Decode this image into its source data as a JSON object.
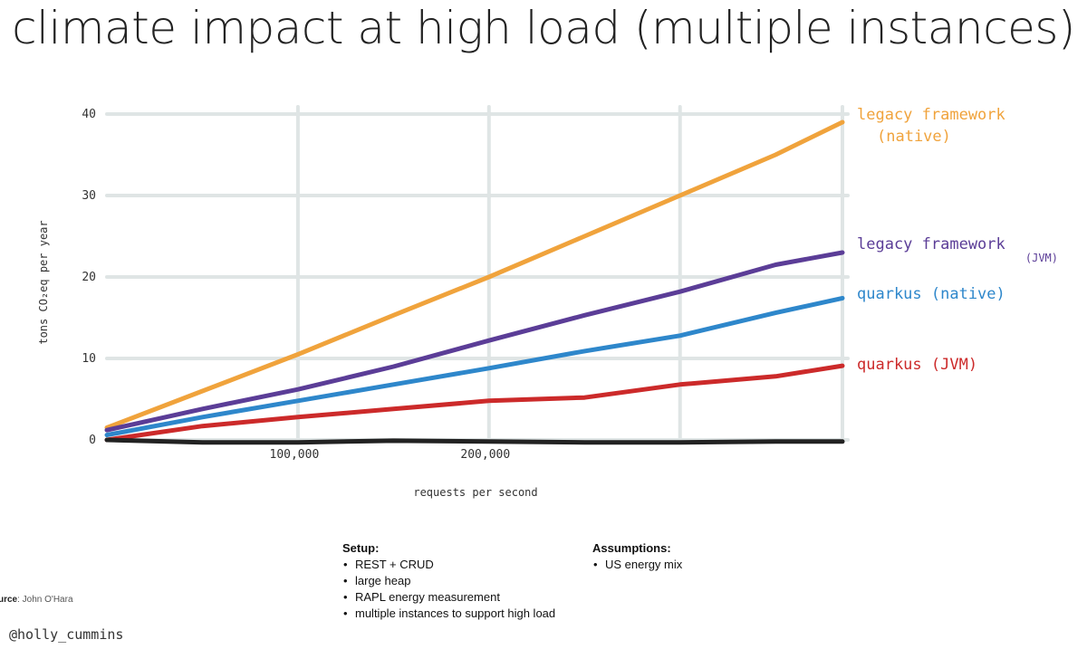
{
  "title": "climate impact at high load (multiple instances)",
  "chart_data": {
    "type": "line",
    "xlabel": "requests per second",
    "ylabel": "tons CO₂eq per year",
    "x_tick_labels": [
      "100,000",
      "200,000"
    ],
    "x_tick_values": [
      100000,
      200000
    ],
    "y_ticks": [
      0,
      10,
      20,
      30,
      40
    ],
    "xlim": [
      0,
      385000
    ],
    "ylim": [
      0,
      40
    ],
    "grid": true,
    "x": [
      0,
      50000,
      100000,
      150000,
      200000,
      250000,
      300000,
      350000,
      385000
    ],
    "series": [
      {
        "name": "legacy framework (native)",
        "color": "#f0a33c",
        "values": [
          1.5,
          6,
          10.5,
          15.3,
          20,
          25,
          30,
          35,
          39
        ]
      },
      {
        "name": "legacy framework (JVM)",
        "color": "#5b3d97",
        "values": [
          1.2,
          3.8,
          6.2,
          9,
          12.2,
          15.3,
          18.2,
          21.5,
          23
        ]
      },
      {
        "name": "quarkus (native)",
        "color": "#2e87cb",
        "values": [
          0.6,
          2.8,
          4.8,
          6.8,
          8.8,
          10.9,
          12.8,
          15.6,
          17.4
        ]
      },
      {
        "name": "quarkus (JVM)",
        "color": "#cc2a2a",
        "values": [
          0,
          1.7,
          2.8,
          3.8,
          4.8,
          5.2,
          6.8,
          7.8,
          9.1
        ]
      },
      {
        "name": "",
        "color": "#222222",
        "values": [
          0,
          -0.3,
          -0.3,
          -0.1,
          -0.2,
          -0.3,
          -0.3,
          -0.2,
          -0.2
        ]
      }
    ],
    "direct_labels": [
      {
        "line1": "legacy framework",
        "line2": "(native)"
      },
      {
        "line1": "legacy framework",
        "line2": "(JVM)"
      },
      {
        "line1": "quarkus (native)",
        "line2": ""
      },
      {
        "line1": "quarkus (JVM)",
        "line2": ""
      }
    ]
  },
  "setup": {
    "heading": "Setup:",
    "items": [
      "REST + CRUD",
      "large heap",
      "RAPL energy measurement",
      "multiple instances to support high load"
    ]
  },
  "assumptions": {
    "heading": "Assumptions:",
    "items": [
      "US energy mix"
    ]
  },
  "source": {
    "label": "urce",
    "value": ": John O'Hara"
  },
  "handle": "@holly_cummins"
}
